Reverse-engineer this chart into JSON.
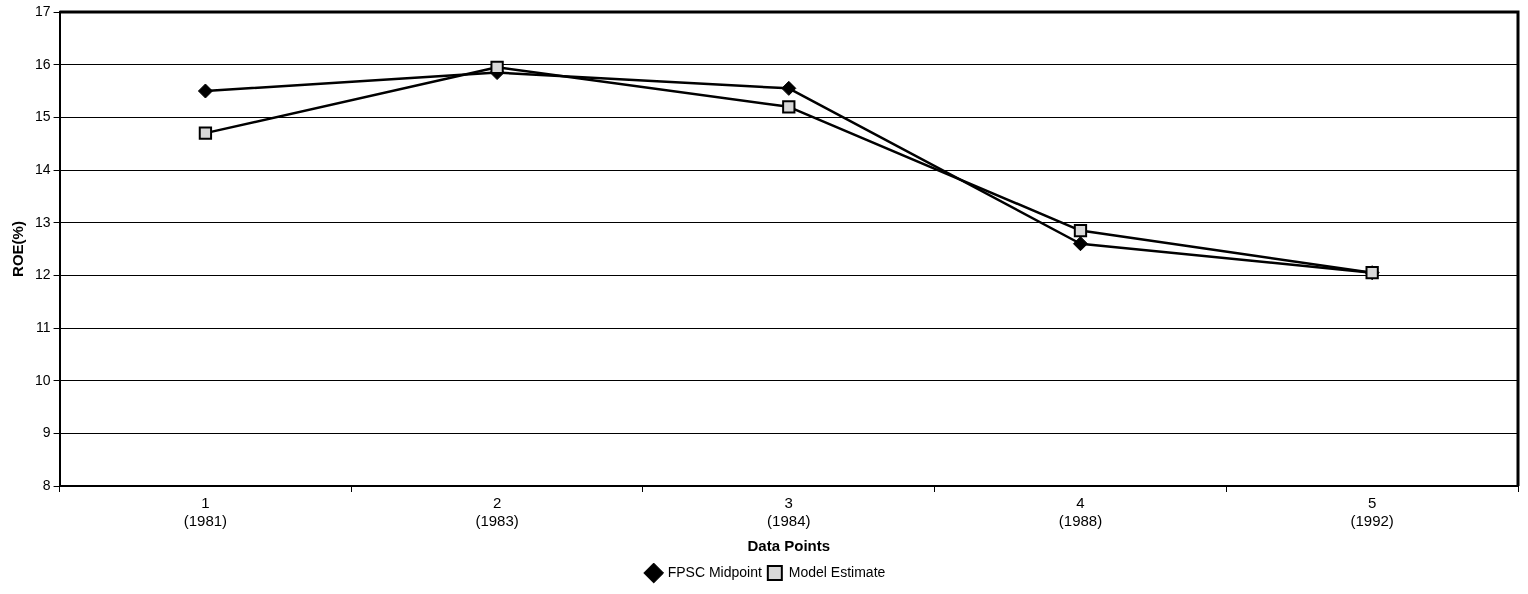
{
  "chart_data": {
    "type": "line",
    "categories": [
      "1\n(1981)",
      "2\n(1983)",
      "3\n(1984)",
      "4\n(1988)",
      "5\n(1992)"
    ],
    "series": [
      {
        "name": "FPSC Midpoint",
        "color": "#000000",
        "marker": "diamond",
        "values": [
          15.5,
          15.85,
          15.55,
          12.6,
          12.05
        ]
      },
      {
        "name": "Model Estimate",
        "color": "#000000",
        "marker": "square",
        "values": [
          14.7,
          15.95,
          15.2,
          12.85,
          12.05
        ]
      }
    ],
    "xlabel": "Data Points",
    "ylabel": "ROE(%)",
    "ylim": [
      8,
      17
    ],
    "yticks": [
      8,
      9,
      10,
      11,
      12,
      13,
      14,
      15,
      16,
      17
    ],
    "grid": "y",
    "legend": "bottom",
    "line_style": "solid"
  }
}
